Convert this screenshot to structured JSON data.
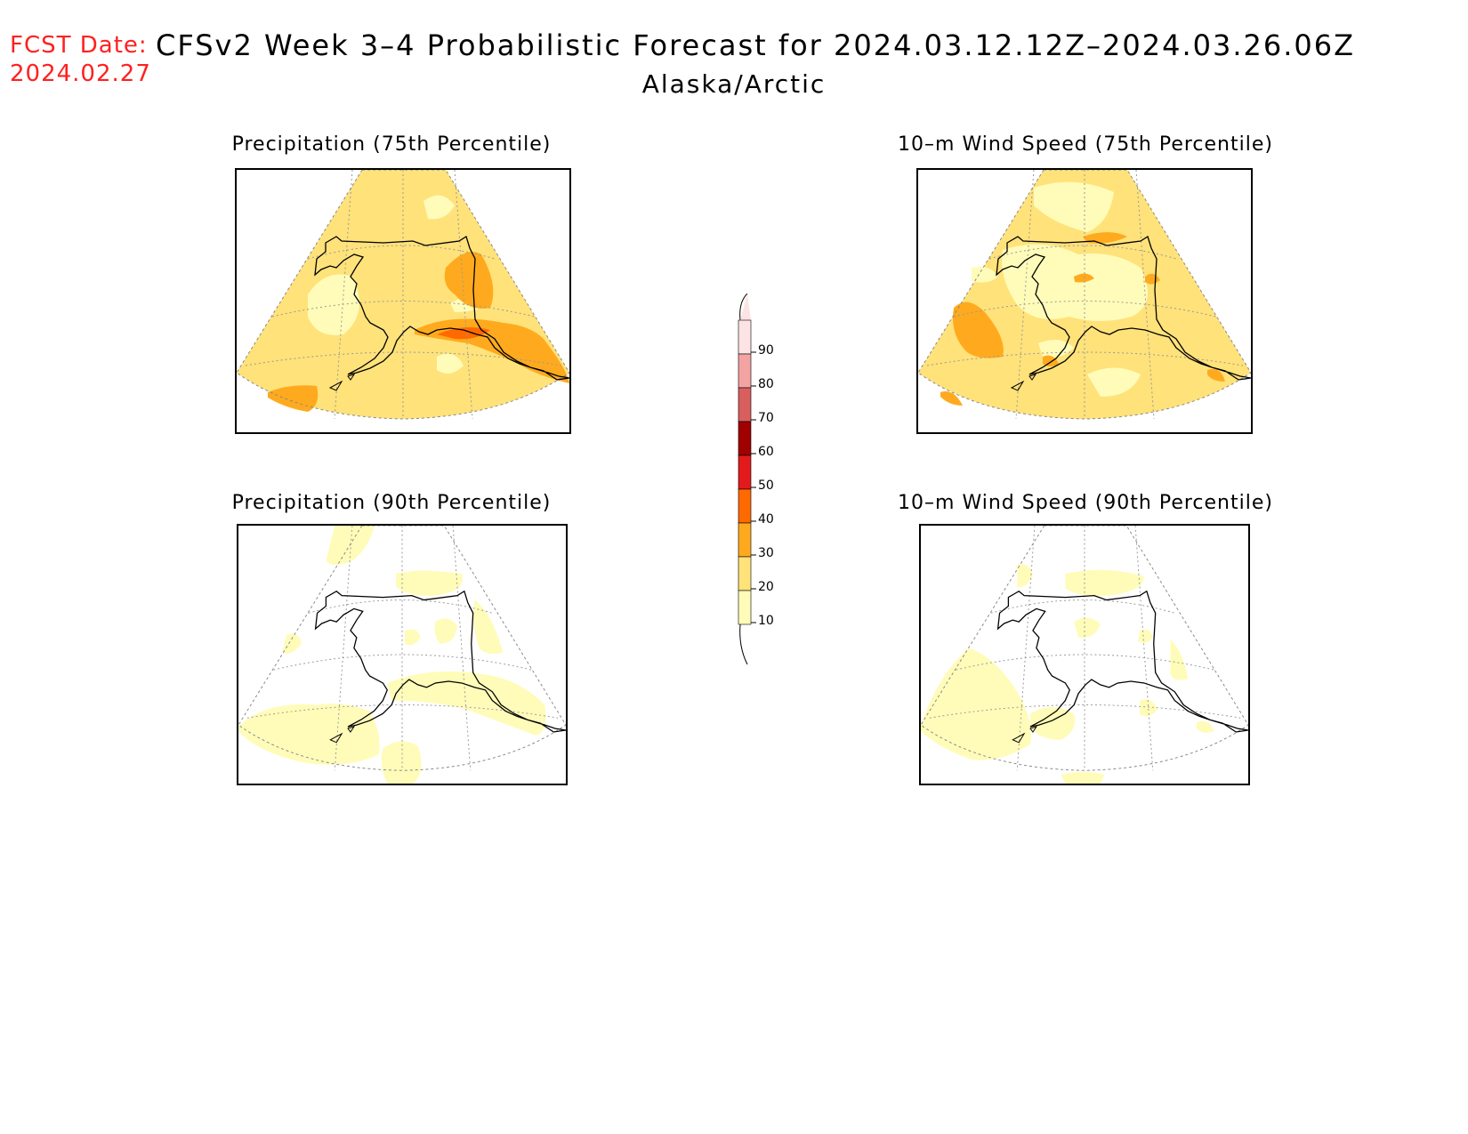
{
  "header": {
    "fcst_label": "FCST Date:",
    "fcst_date": "2024.02.27",
    "title": "CFSv2 Week 3–4 Probabilistic Forecast for 2024.03.12.12Z–2024.03.26.06Z",
    "subtitle": "Alaska/Arctic"
  },
  "panels": [
    {
      "id": "precip75",
      "title": "Precipitation (75th Percentile)",
      "variable": "Precipitation",
      "percentile": 75
    },
    {
      "id": "wind75",
      "title": "10–m Wind Speed (75th Percentile)",
      "variable": "10-m Wind Speed",
      "percentile": 75
    },
    {
      "id": "precip90",
      "title": "Precipitation (90th Percentile)",
      "variable": "Precipitation",
      "percentile": 90
    },
    {
      "id": "wind90",
      "title": "10–m Wind Speed (90th Percentile)",
      "variable": "10-m Wind Speed",
      "percentile": 90
    }
  ],
  "colorbar": {
    "levels": [
      "90",
      "80",
      "70",
      "60",
      "50",
      "40",
      "30",
      "20",
      "10"
    ],
    "colors": {
      "10": "#fffcb9",
      "20": "#ffe27a",
      "30": "#ffaa1e",
      "40": "#ff6a00",
      "50": "#e31a1c",
      "60": "#a00000",
      "70": "#d95f5f",
      "80": "#f4a3a3",
      "90": "#fde3e3"
    }
  }
}
